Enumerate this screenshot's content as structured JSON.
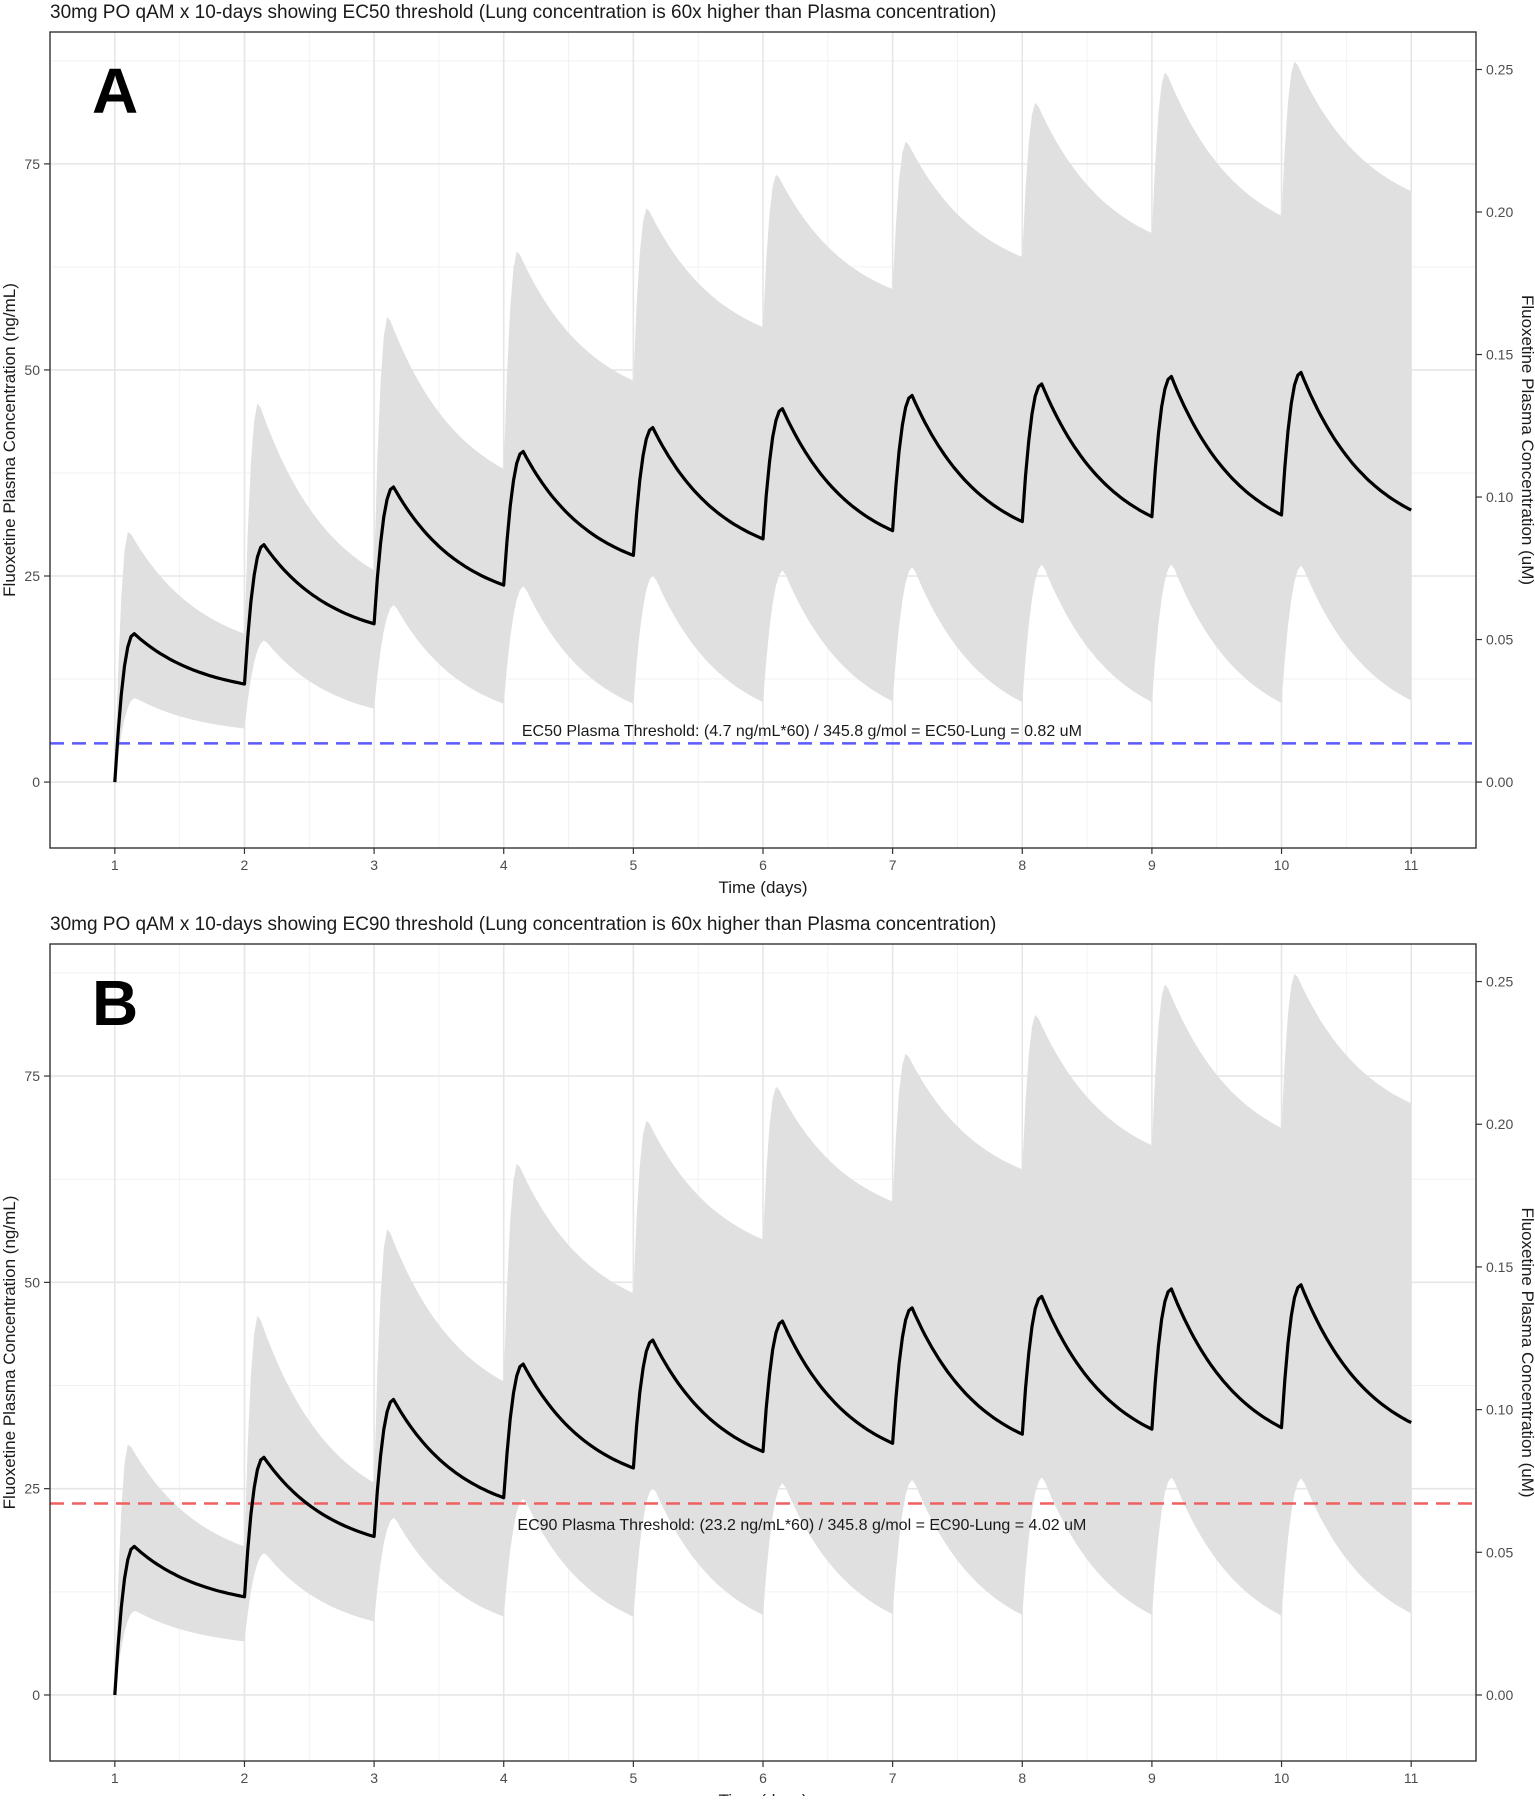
{
  "chart_data": [
    {
      "type": "area",
      "panel_letter": "A",
      "title": "30mg PO qAM x 10-days showing EC50 threshold (Lung concentration is 60x higher than Plasma concentration)",
      "xlabel": "Time (days)",
      "ylabel": "Fluoxetine Plasma Concentration (ng/mL)",
      "y2label": "Fluoxetine Plasma Concentration (uM)",
      "xlim": [
        0.5,
        11.5
      ],
      "ylim": [
        -8,
        91
      ],
      "x_ticks": [
        "1",
        "2",
        "3",
        "4",
        "5",
        "6",
        "7",
        "8",
        "9",
        "10",
        "11"
      ],
      "y_ticks": [
        "0",
        "25",
        "50",
        "75"
      ],
      "y2_ticks": [
        "0.00",
        "0.05",
        "0.10",
        "0.15",
        "0.20",
        "0.25"
      ],
      "grid": true,
      "threshold": {
        "value": 4.7,
        "color": "#5b5bff",
        "label": "EC50 Plasma Threshold: (4.7 ng/mL*60) / 345.8 g/mol = EC50-Lung = 0.82 uM",
        "label_x": 6.3,
        "label_y": 6.3
      },
      "series": [
        {
          "role": "median",
          "color": "#000000",
          "peaks": [
            18.0,
            28.8,
            35.8,
            40.1,
            43.0,
            45.3,
            46.9,
            48.3,
            49.2,
            49.7
          ],
          "troughs": [
            11.9,
            19.2,
            23.9,
            27.5,
            29.5,
            30.5,
            31.6,
            32.2,
            32.4,
            33.0
          ]
        },
        {
          "role": "upper-bound",
          "color": "#e0e0e0",
          "peaks": [
            30.5,
            46.1,
            56.6,
            64.5,
            69.7,
            73.8,
            77.8,
            82.5,
            86.2,
            87.5
          ],
          "troughs": [
            18.0,
            25.7,
            38.0,
            48.7,
            55.2,
            59.8,
            63.7,
            66.6,
            68.7,
            71.7
          ]
        },
        {
          "role": "lower-bound",
          "color": "#e0e0e0",
          "peaks": [
            10.2,
            17.2,
            21.5,
            23.8,
            25.1,
            25.7,
            26.1,
            26.4,
            26.4,
            26.3
          ],
          "troughs": [
            6.5,
            8.9,
            9.5,
            9.5,
            9.7,
            9.8,
            9.7,
            9.7,
            9.6,
            9.9
          ]
        }
      ]
    },
    {
      "type": "area",
      "panel_letter": "B",
      "title": "30mg PO qAM x 10-days showing EC90 threshold (Lung concentration is 60x higher than Plasma concentration)",
      "xlabel": "Time (days)",
      "ylabel": "Fluoxetine Plasma Concentration (ng/mL)",
      "y2label": "Fluoxetine Plasma Concentration (uM)",
      "xlim": [
        0.5,
        11.5
      ],
      "ylim": [
        -8,
        91
      ],
      "x_ticks": [
        "1",
        "2",
        "3",
        "4",
        "5",
        "6",
        "7",
        "8",
        "9",
        "10",
        "11"
      ],
      "y_ticks": [
        "0",
        "25",
        "50",
        "75"
      ],
      "y2_ticks": [
        "0.00",
        "0.05",
        "0.10",
        "0.15",
        "0.20",
        "0.25"
      ],
      "grid": true,
      "threshold": {
        "value": 23.2,
        "color": "#f06060",
        "label": "EC90 Plasma Threshold: (23.2 ng/mL*60) / 345.8 g/mol = EC90-Lung = 4.02 uM",
        "label_x": 6.3,
        "label_y": 20.7
      },
      "series": [
        {
          "role": "median",
          "color": "#000000",
          "peaks": [
            18.0,
            28.8,
            35.8,
            40.1,
            43.0,
            45.3,
            46.9,
            48.3,
            49.2,
            49.7
          ],
          "troughs": [
            11.9,
            19.2,
            23.9,
            27.5,
            29.5,
            30.5,
            31.6,
            32.2,
            32.4,
            33.0
          ]
        },
        {
          "role": "upper-bound",
          "color": "#e0e0e0",
          "peaks": [
            30.5,
            46.1,
            56.6,
            64.5,
            69.7,
            73.8,
            77.8,
            82.5,
            86.2,
            87.5
          ],
          "troughs": [
            18.0,
            25.7,
            38.0,
            48.7,
            55.2,
            59.8,
            63.7,
            66.6,
            68.7,
            71.7
          ]
        },
        {
          "role": "lower-bound",
          "color": "#e0e0e0",
          "peaks": [
            10.2,
            17.2,
            21.5,
            23.8,
            25.1,
            25.7,
            26.1,
            26.4,
            26.4,
            26.3
          ],
          "troughs": [
            6.5,
            8.9,
            9.5,
            9.5,
            9.7,
            9.8,
            9.7,
            9.7,
            9.6,
            9.9
          ]
        }
      ]
    }
  ]
}
